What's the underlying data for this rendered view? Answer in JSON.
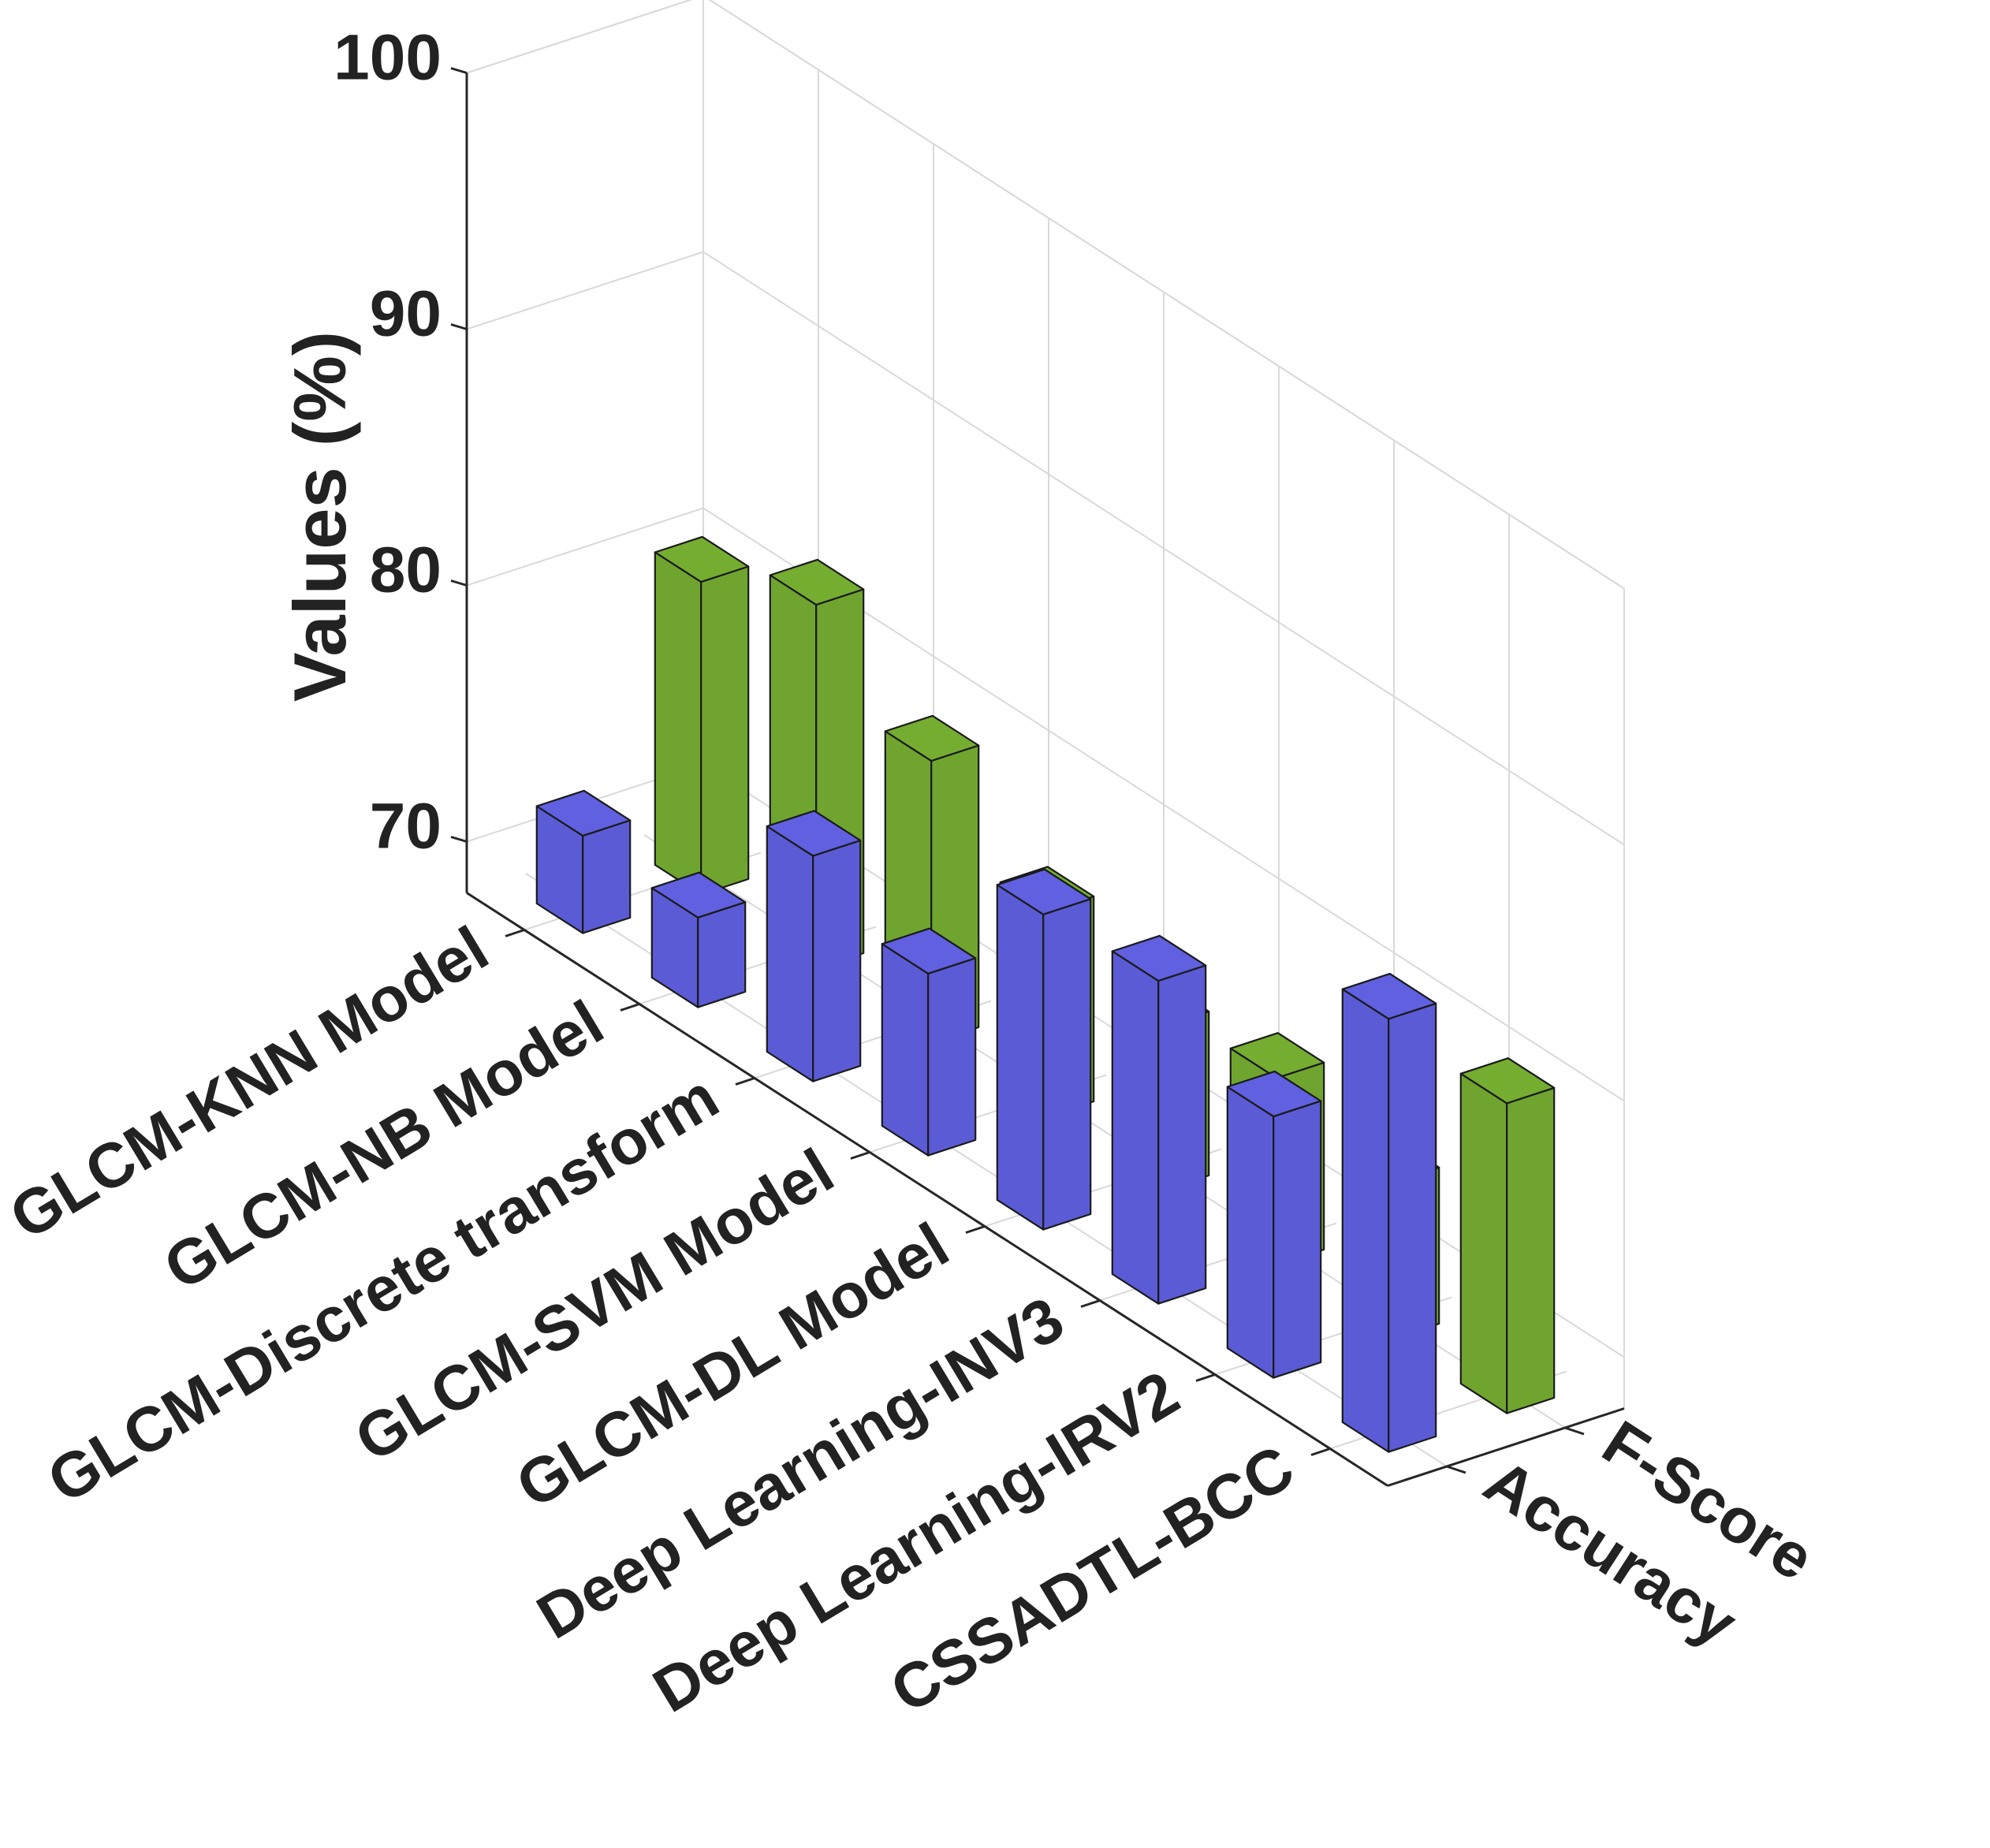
{
  "chart_data": {
    "type": "bar",
    "projection": "3d",
    "title": "",
    "xlabel": "",
    "ylabel": "Values (%)",
    "ylim": [
      68,
      100
    ],
    "yticks": [
      70,
      80,
      90,
      100
    ],
    "categories": [
      "GLCM-KNN Model",
      "GLCM-NB Model",
      "GLCM-Discrete transform",
      "GLCM-SVM Model",
      "GLCM-DL Model",
      "Deep Learning-INV3",
      "Deep Learning-IRV2",
      "CSSADTL-BCC"
    ],
    "series": [
      {
        "name": "Accuracy",
        "color": "#5b5bd6",
        "values": [
          71.8,
          71.5,
          76.8,
          75.1,
          80.3,
          80.6,
          78.2,
          84.9
        ]
      },
      {
        "name": "F-Score",
        "color": "#6fa52f",
        "values": [
          80.2,
          82.2,
          79.0,
          76.0,
          74.4,
          75.3,
          74.1,
          80.1
        ]
      }
    ],
    "grid": true
  }
}
